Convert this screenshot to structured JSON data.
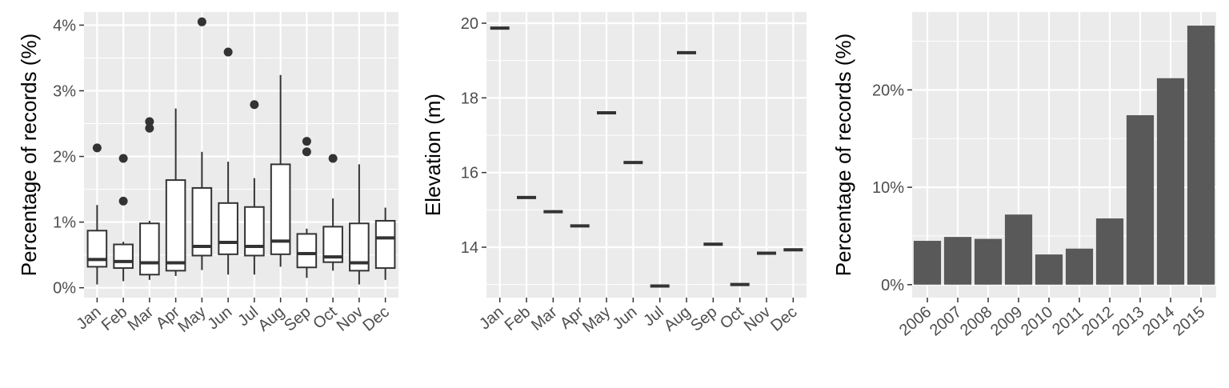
{
  "chart_data": [
    {
      "type": "box",
      "xlabel": "",
      "ylabel": "Percentage of records (%)",
      "categories": [
        "Jan",
        "Feb",
        "Mar",
        "Apr",
        "May",
        "Jun",
        "Jul",
        "Aug",
        "Sep",
        "Oct",
        "Nov",
        "Dec"
      ],
      "ylim": [
        -0.15,
        4.2
      ],
      "yticks": [
        0,
        1,
        2,
        3,
        4
      ],
      "ytick_labels": [
        "0%",
        "1%",
        "2%",
        "3%",
        "4%"
      ],
      "grid": true,
      "boxes": [
        {
          "low": 0.05,
          "q1": 0.32,
          "median": 0.43,
          "q3": 0.87,
          "high": 1.26,
          "outliers": [
            2.13
          ]
        },
        {
          "low": 0.1,
          "q1": 0.3,
          "median": 0.4,
          "q3": 0.66,
          "high": 0.7,
          "outliers": [
            1.32,
            1.97
          ]
        },
        {
          "low": 0.12,
          "q1": 0.2,
          "median": 0.38,
          "q3": 0.98,
          "high": 1.02,
          "outliers": [
            2.43,
            2.53
          ]
        },
        {
          "low": 0.18,
          "q1": 0.26,
          "median": 0.38,
          "q3": 1.64,
          "high": 2.73,
          "outliers": []
        },
        {
          "low": 0.27,
          "q1": 0.49,
          "median": 0.63,
          "q3": 1.52,
          "high": 2.07,
          "outliers": [
            4.05
          ]
        },
        {
          "low": 0.2,
          "q1": 0.51,
          "median": 0.69,
          "q3": 1.29,
          "high": 1.92,
          "outliers": [
            3.59
          ]
        },
        {
          "low": 0.2,
          "q1": 0.49,
          "median": 0.63,
          "q3": 1.23,
          "high": 1.67,
          "outliers": [
            2.79
          ]
        },
        {
          "low": 0.32,
          "q1": 0.51,
          "median": 0.71,
          "q3": 1.88,
          "high": 3.24,
          "outliers": []
        },
        {
          "low": 0.15,
          "q1": 0.31,
          "median": 0.52,
          "q3": 0.82,
          "high": 0.9,
          "outliers": [
            2.07,
            2.23
          ]
        },
        {
          "low": 0.26,
          "q1": 0.39,
          "median": 0.47,
          "q3": 0.93,
          "high": 1.36,
          "outliers": [
            1.97
          ]
        },
        {
          "low": 0.05,
          "q1": 0.26,
          "median": 0.38,
          "q3": 0.98,
          "high": 1.88,
          "outliers": []
        },
        {
          "low": 0.12,
          "q1": 0.3,
          "median": 0.76,
          "q3": 1.02,
          "high": 1.22,
          "outliers": []
        }
      ]
    },
    {
      "type": "point-range",
      "xlabel": "",
      "ylabel": "Elevation (m)",
      "categories": [
        "Jan",
        "Feb",
        "Mar",
        "Apr",
        "May",
        "Jun",
        "Jul",
        "Aug",
        "Sep",
        "Oct",
        "Nov",
        "Dec"
      ],
      "values": [
        19.87,
        15.33,
        14.95,
        14.57,
        17.6,
        16.27,
        12.96,
        19.21,
        14.08,
        13.0,
        13.84,
        13.93
      ],
      "ylim": [
        12.65,
        20.3
      ],
      "yticks": [
        14,
        16,
        18,
        20
      ],
      "ytick_labels": [
        "14",
        "16",
        "18",
        "20"
      ],
      "grid": true
    },
    {
      "type": "bar",
      "xlabel": "",
      "ylabel": "Percentage of records (%)",
      "categories": [
        "2006",
        "2007",
        "2008",
        "2009",
        "2010",
        "2011",
        "2012",
        "2013",
        "2014",
        "2015"
      ],
      "values": [
        4.5,
        4.9,
        4.7,
        7.2,
        3.1,
        3.7,
        6.8,
        17.4,
        21.2,
        26.6
      ],
      "ylim": [
        -1.33,
        28.0
      ],
      "yticks": [
        0,
        10,
        20
      ],
      "ytick_labels": [
        "0%",
        "10%",
        "20%"
      ],
      "grid": true,
      "bar_color": "#595959"
    }
  ]
}
